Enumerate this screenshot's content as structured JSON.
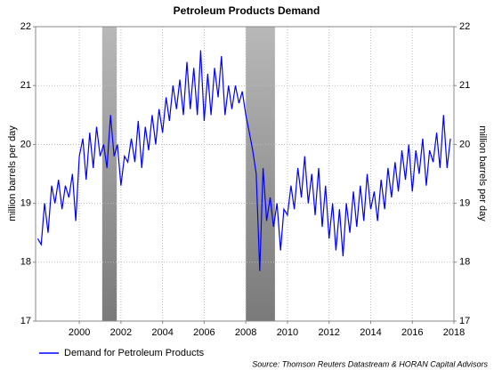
{
  "chart_data": {
    "type": "line",
    "title": "Petroleum Products Demand",
    "ylabel": "million barrels per day",
    "y2label": "million barrels per day",
    "source": "Source: Thomson Reuters Datastream & HORAN Capital Advisors",
    "xlim": [
      1997.9,
      2018
    ],
    "xticks": [
      2000,
      2002,
      2004,
      2006,
      2008,
      2010,
      2012,
      2014,
      2016,
      2018
    ],
    "ylim": [
      17,
      22
    ],
    "yticks": [
      17,
      18,
      19,
      20,
      21,
      22
    ],
    "y2lim": [
      17,
      22
    ],
    "y2ticks": [
      17,
      18,
      19,
      20,
      21,
      22
    ],
    "grid": true,
    "legend": "bottom-left",
    "shaded_ranges": [
      [
        2001.1,
        2001.8
      ],
      [
        2008,
        2009.4
      ]
    ],
    "x": [
      1998,
      1998.17,
      1998.33,
      1998.5,
      1998.67,
      1998.83,
      1999,
      1999.17,
      1999.33,
      1999.5,
      1999.67,
      1999.83,
      2000,
      2000.17,
      2000.33,
      2000.5,
      2000.67,
      2000.83,
      2001,
      2001.17,
      2001.33,
      2001.5,
      2001.67,
      2001.83,
      2002,
      2002.17,
      2002.33,
      2002.5,
      2002.67,
      2002.83,
      2003,
      2003.17,
      2003.33,
      2003.5,
      2003.67,
      2003.83,
      2004,
      2004.17,
      2004.33,
      2004.5,
      2004.67,
      2004.83,
      2005,
      2005.17,
      2005.33,
      2005.5,
      2005.67,
      2005.83,
      2006,
      2006.17,
      2006.33,
      2006.5,
      2006.67,
      2006.83,
      2007,
      2007.17,
      2007.33,
      2007.5,
      2007.67,
      2007.83,
      2008,
      2008.17,
      2008.33,
      2008.5,
      2008.67,
      2008.83,
      2009,
      2009.17,
      2009.33,
      2009.5,
      2009.67,
      2009.83,
      2010,
      2010.17,
      2010.33,
      2010.5,
      2010.67,
      2010.83,
      2011,
      2011.17,
      2011.33,
      2011.5,
      2011.67,
      2011.83,
      2012,
      2012.17,
      2012.33,
      2012.5,
      2012.67,
      2012.83,
      2013,
      2013.17,
      2013.33,
      2013.5,
      2013.67,
      2013.83,
      2014,
      2014.17,
      2014.33,
      2014.5,
      2014.67,
      2014.83,
      2015,
      2015.17,
      2015.33,
      2015.5,
      2015.67,
      2015.83,
      2016,
      2016.17,
      2016.33,
      2016.5,
      2016.67,
      2016.83,
      2017,
      2017.17,
      2017.33,
      2017.5,
      2017.67,
      2017.83
    ],
    "series": [
      {
        "name": "Demand for Petroleum Products",
        "color": "#0000ff",
        "values": [
          18.4,
          18.3,
          19.0,
          18.5,
          19.3,
          19.0,
          19.4,
          18.9,
          19.3,
          19.1,
          19.5,
          18.7,
          19.8,
          20.1,
          19.4,
          20.2,
          19.6,
          20.3,
          19.8,
          20.0,
          19.6,
          20.5,
          19.8,
          20.0,
          19.3,
          19.8,
          19.7,
          20.1,
          19.7,
          20.4,
          19.6,
          20.3,
          19.9,
          20.5,
          20.0,
          20.6,
          20.2,
          20.8,
          20.4,
          21.0,
          20.6,
          21.1,
          20.5,
          21.4,
          20.6,
          21.3,
          20.5,
          21.6,
          20.4,
          21.2,
          20.5,
          21.3,
          20.8,
          21.5,
          20.5,
          21.0,
          20.6,
          21.0,
          20.7,
          20.9,
          20.5,
          20.2,
          19.9,
          19.5,
          17.85,
          19.6,
          18.7,
          19.1,
          18.6,
          19.0,
          18.2,
          18.9,
          18.8,
          19.3,
          18.9,
          19.6,
          19.1,
          19.8,
          19.0,
          19.5,
          18.8,
          19.6,
          18.6,
          19.3,
          18.4,
          19.0,
          18.2,
          18.9,
          18.1,
          19.0,
          18.5,
          19.2,
          18.6,
          19.3,
          18.7,
          19.5,
          18.9,
          19.2,
          18.7,
          19.4,
          18.9,
          19.6,
          19.1,
          19.7,
          19.2,
          19.9,
          19.4,
          20.0,
          19.2,
          19.9,
          19.5,
          20.1,
          19.3,
          19.9,
          19.7,
          20.2,
          19.6,
          20.5,
          19.6,
          20.1
        ]
      }
    ]
  }
}
